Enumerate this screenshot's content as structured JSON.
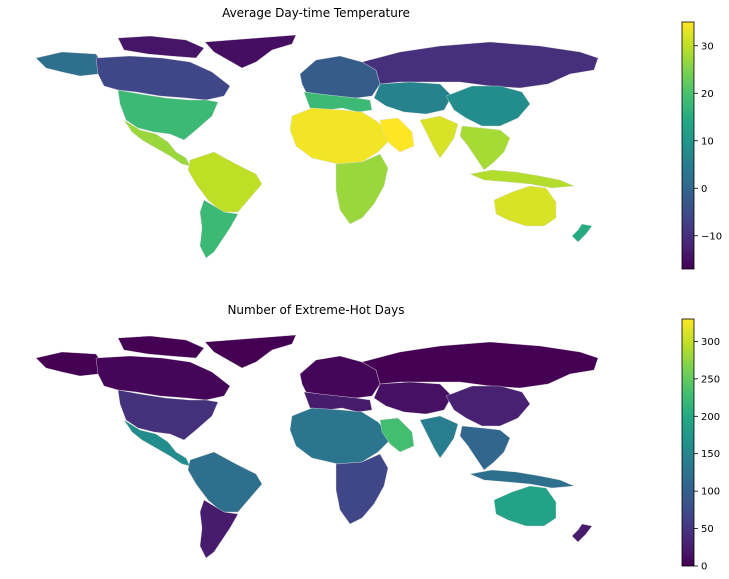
{
  "panels": [
    {
      "title": "Average Day-time Temperature",
      "colorbar": {
        "min": -17,
        "max": 35,
        "ticks": [
          -10,
          0,
          10,
          20,
          30
        ],
        "tick_labels": [
          "−10",
          "0",
          "10",
          "20",
          "30"
        ]
      },
      "regions": [
        {
          "name": "greenland",
          "value": -15
        },
        {
          "name": "canada-arctic",
          "value": -14
        },
        {
          "name": "alaska",
          "value": 2
        },
        {
          "name": "canada",
          "value": -6
        },
        {
          "name": "united-states",
          "value": 18
        },
        {
          "name": "mexico-central-america",
          "value": 27
        },
        {
          "name": "south-america-north",
          "value": 30
        },
        {
          "name": "south-america-south",
          "value": 18
        },
        {
          "name": "europe-north",
          "value": -2
        },
        {
          "name": "europe-south",
          "value": 18
        },
        {
          "name": "africa-north",
          "value": 34
        },
        {
          "name": "africa-south",
          "value": 27
        },
        {
          "name": "arabia",
          "value": 35
        },
        {
          "name": "russia-siberia",
          "value": -10
        },
        {
          "name": "central-asia",
          "value": 6
        },
        {
          "name": "india",
          "value": 32
        },
        {
          "name": "china",
          "value": 8
        },
        {
          "name": "southeast-asia",
          "value": 28
        },
        {
          "name": "indonesia",
          "value": 29
        },
        {
          "name": "australia",
          "value": 32
        },
        {
          "name": "new-zealand",
          "value": 15
        }
      ]
    },
    {
      "title": "Number of Extreme-Hot Days",
      "colorbar": {
        "min": 0,
        "max": 330,
        "ticks": [
          0,
          50,
          100,
          150,
          200,
          250,
          300
        ],
        "tick_labels": [
          "0",
          "50",
          "100",
          "150",
          "200",
          "250",
          "300"
        ]
      },
      "regions": [
        {
          "name": "greenland",
          "value": 0
        },
        {
          "name": "canada-arctic",
          "value": 0
        },
        {
          "name": "alaska",
          "value": 0
        },
        {
          "name": "canada",
          "value": 5
        },
        {
          "name": "united-states",
          "value": 45
        },
        {
          "name": "mexico-central-america",
          "value": 160
        },
        {
          "name": "south-america-north",
          "value": 120
        },
        {
          "name": "south-america-south",
          "value": 25
        },
        {
          "name": "europe-north",
          "value": 5
        },
        {
          "name": "europe-south",
          "value": 25
        },
        {
          "name": "africa-north",
          "value": 130
        },
        {
          "name": "africa-south",
          "value": 70
        },
        {
          "name": "arabia",
          "value": 230
        },
        {
          "name": "russia-siberia",
          "value": 0
        },
        {
          "name": "central-asia",
          "value": 15
        },
        {
          "name": "india",
          "value": 140
        },
        {
          "name": "china",
          "value": 30
        },
        {
          "name": "southeast-asia",
          "value": 110
        },
        {
          "name": "indonesia",
          "value": 120
        },
        {
          "name": "australia",
          "value": 190
        },
        {
          "name": "new-zealand",
          "value": 25
        }
      ]
    }
  ]
}
